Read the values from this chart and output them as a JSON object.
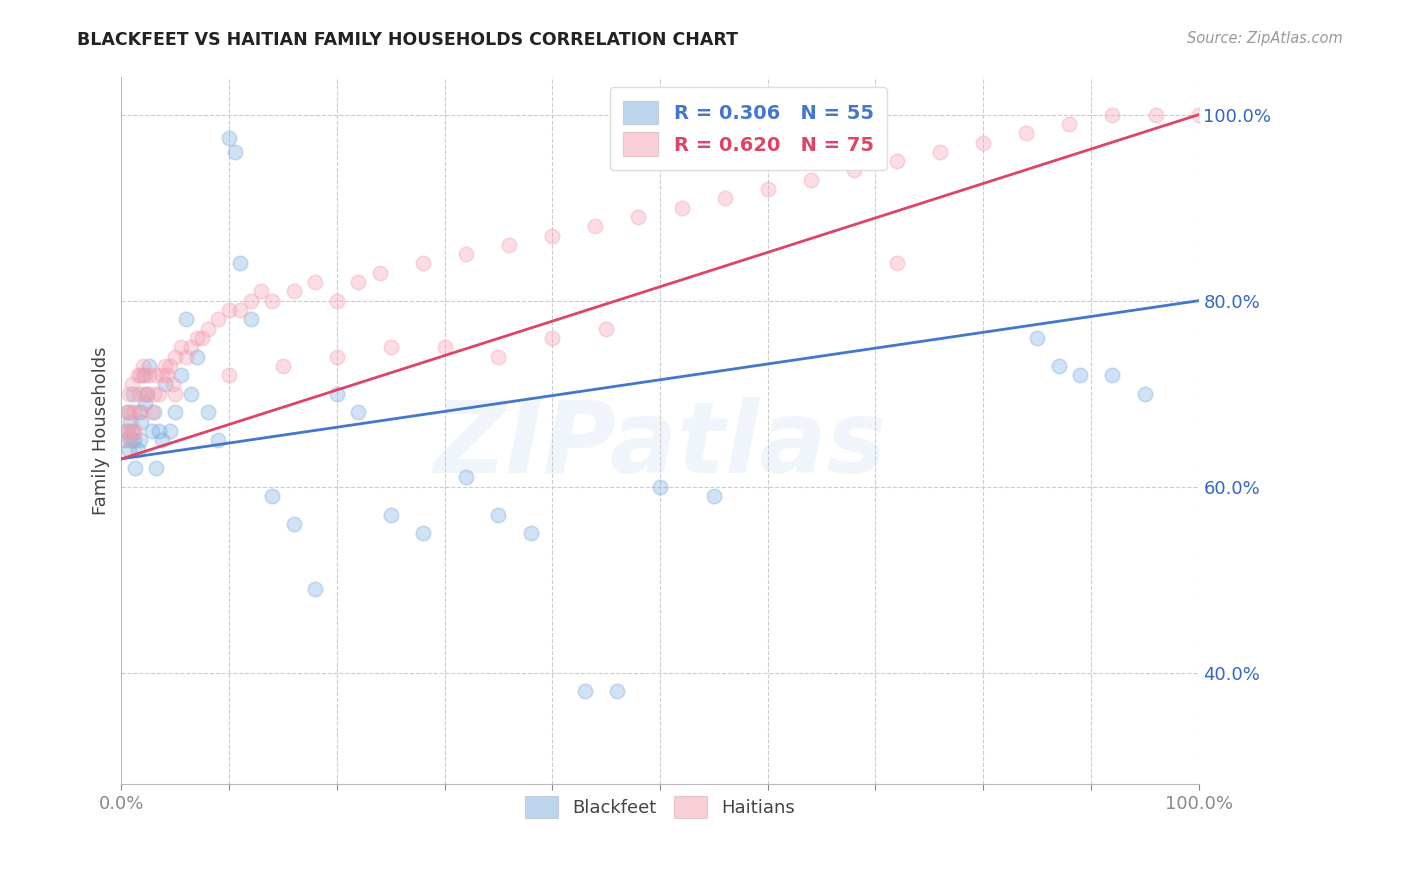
{
  "title": "BLACKFEET VS HAITIAN FAMILY HOUSEHOLDS CORRELATION CHART",
  "source": "Source: ZipAtlas.com",
  "ylabel": "Family Households",
  "xlim": [
    0,
    1
  ],
  "ylim": [
    0.28,
    1.04
  ],
  "y_ticks": [
    0.4,
    0.6,
    0.8,
    1.0
  ],
  "y_tick_labels": [
    "40.0%",
    "60.0%",
    "80.0%",
    "100.0%"
  ],
  "x_ticks": [
    0.0,
    0.1,
    0.2,
    0.3,
    0.4,
    0.5,
    0.6,
    0.7,
    0.8,
    0.9,
    1.0
  ],
  "x_tick_labels": [
    "0.0%",
    "",
    "",
    "",
    "",
    "",
    "",
    "",
    "",
    "",
    "100.0%"
  ],
  "grid_color": "#cccccc",
  "watermark": "ZIPatlas",
  "blue_color": "#7aaddd",
  "pink_color": "#f4a0b0",
  "blue_line_color": "#4477cc",
  "pink_line_color": "#dd4466",
  "title_color": "#222222",
  "axis_label_color": "#444444",
  "tick_label_color": "#3366cc",
  "source_color": "#999999",
  "blue_line_x": [
    0.0,
    1.0
  ],
  "blue_line_y": [
    0.63,
    0.8
  ],
  "pink_line_x": [
    0.0,
    1.0
  ],
  "pink_line_y": [
    0.63,
    1.0
  ],
  "blue_scatter_x": [
    0.003,
    0.005,
    0.006,
    0.007,
    0.008,
    0.009,
    0.01,
    0.011,
    0.012,
    0.013,
    0.015,
    0.016,
    0.017,
    0.018,
    0.02,
    0.022,
    0.024,
    0.026,
    0.028,
    0.03,
    0.032,
    0.035,
    0.038,
    0.04,
    0.045,
    0.05,
    0.055,
    0.06,
    0.065,
    0.07,
    0.08,
    0.09,
    0.1,
    0.105,
    0.11,
    0.12,
    0.14,
    0.16,
    0.18,
    0.2,
    0.22,
    0.25,
    0.28,
    0.32,
    0.35,
    0.38,
    0.43,
    0.46,
    0.5,
    0.55,
    0.85,
    0.87,
    0.89,
    0.92,
    0.95
  ],
  "blue_scatter_y": [
    0.65,
    0.66,
    0.68,
    0.64,
    0.67,
    0.65,
    0.66,
    0.7,
    0.65,
    0.62,
    0.64,
    0.68,
    0.65,
    0.67,
    0.72,
    0.69,
    0.7,
    0.73,
    0.66,
    0.68,
    0.62,
    0.66,
    0.65,
    0.71,
    0.66,
    0.68,
    0.72,
    0.78,
    0.7,
    0.74,
    0.68,
    0.65,
    0.975,
    0.96,
    0.84,
    0.78,
    0.59,
    0.56,
    0.49,
    0.7,
    0.68,
    0.57,
    0.55,
    0.61,
    0.57,
    0.55,
    0.38,
    0.38,
    0.6,
    0.59,
    0.76,
    0.73,
    0.72,
    0.72,
    0.7
  ],
  "pink_scatter_x": [
    0.003,
    0.005,
    0.006,
    0.007,
    0.008,
    0.009,
    0.01,
    0.011,
    0.012,
    0.013,
    0.015,
    0.016,
    0.017,
    0.018,
    0.02,
    0.021,
    0.022,
    0.024,
    0.026,
    0.028,
    0.03,
    0.032,
    0.035,
    0.038,
    0.04,
    0.042,
    0.045,
    0.048,
    0.05,
    0.055,
    0.06,
    0.065,
    0.07,
    0.075,
    0.08,
    0.09,
    0.1,
    0.11,
    0.12,
    0.13,
    0.14,
    0.16,
    0.18,
    0.2,
    0.22,
    0.24,
    0.28,
    0.32,
    0.36,
    0.4,
    0.44,
    0.48,
    0.52,
    0.56,
    0.6,
    0.64,
    0.68,
    0.72,
    0.76,
    0.8,
    0.84,
    0.88,
    0.92,
    0.96,
    0.72,
    1.0,
    0.05,
    0.1,
    0.15,
    0.2,
    0.25,
    0.3,
    0.35,
    0.4,
    0.45
  ],
  "pink_scatter_y": [
    0.66,
    0.68,
    0.66,
    0.7,
    0.65,
    0.68,
    0.71,
    0.66,
    0.68,
    0.66,
    0.72,
    0.7,
    0.72,
    0.68,
    0.73,
    0.7,
    0.72,
    0.7,
    0.72,
    0.68,
    0.7,
    0.72,
    0.7,
    0.72,
    0.73,
    0.72,
    0.73,
    0.71,
    0.74,
    0.75,
    0.74,
    0.75,
    0.76,
    0.76,
    0.77,
    0.78,
    0.79,
    0.79,
    0.8,
    0.81,
    0.8,
    0.81,
    0.82,
    0.8,
    0.82,
    0.83,
    0.84,
    0.85,
    0.86,
    0.87,
    0.88,
    0.89,
    0.9,
    0.91,
    0.92,
    0.93,
    0.94,
    0.95,
    0.96,
    0.97,
    0.98,
    0.99,
    1.0,
    1.0,
    0.84,
    1.0,
    0.7,
    0.72,
    0.73,
    0.74,
    0.75,
    0.75,
    0.74,
    0.76,
    0.77
  ],
  "figsize": [
    14.06,
    8.92
  ],
  "dpi": 100
}
